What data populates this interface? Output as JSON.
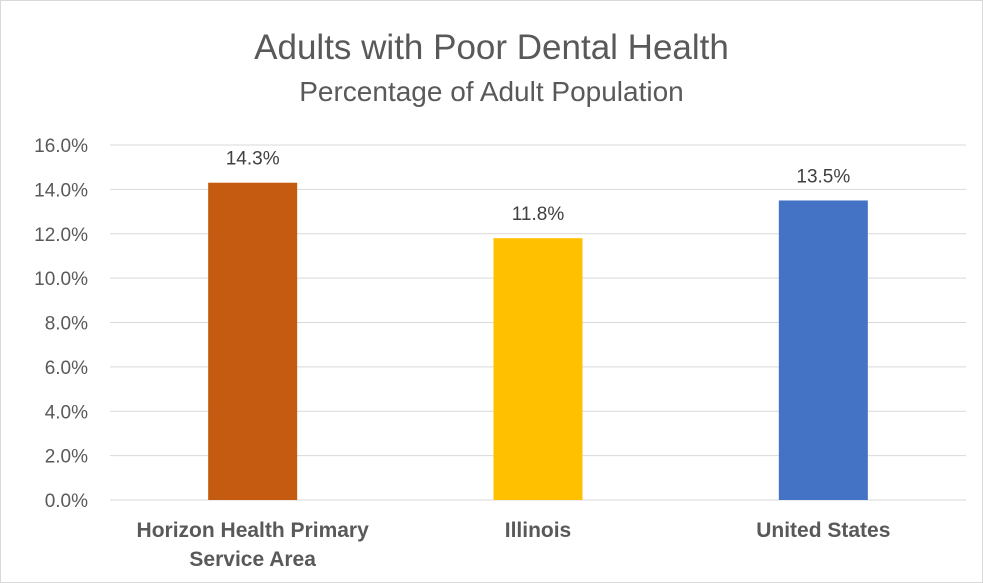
{
  "chart_data": {
    "type": "bar",
    "title": "Adults with Poor Dental Health",
    "subtitle": "Percentage of Adult Population",
    "categories": [
      "Horizon Health Primary Service Area",
      "Illinois",
      "United States"
    ],
    "category_lines": [
      [
        "Horizon Health Primary",
        "Service Area"
      ],
      [
        "Illinois"
      ],
      [
        "United States"
      ]
    ],
    "values": [
      14.3,
      11.8,
      13.5
    ],
    "value_labels": [
      "14.3%",
      "11.8%",
      "13.5%"
    ],
    "colors": [
      "#c55a11",
      "#ffc000",
      "#4472c4"
    ],
    "ylim": [
      0,
      16
    ],
    "yticks": [
      0,
      2,
      4,
      6,
      8,
      10,
      12,
      14,
      16
    ],
    "ytick_labels": [
      "0.0%",
      "2.0%",
      "4.0%",
      "6.0%",
      "8.0%",
      "10.0%",
      "12.0%",
      "14.0%",
      "16.0%"
    ],
    "gridlines": true,
    "gridline_color": "#d9d9d9",
    "xlabel": "",
    "ylabel": ""
  }
}
